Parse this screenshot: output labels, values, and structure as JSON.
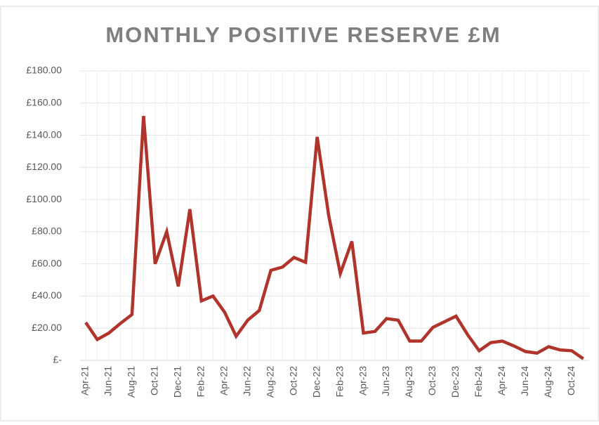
{
  "chart_data": {
    "type": "line",
    "title": "MONTHLY POSITIVE RESERVE £M",
    "categories": [
      "Apr-21",
      null,
      "Jun-21",
      null,
      "Aug-21",
      null,
      "Oct-21",
      null,
      "Dec-21",
      null,
      "Feb-22",
      null,
      "Apr-22",
      null,
      "Jun-22",
      null,
      "Aug-22",
      null,
      "Oct-22",
      null,
      "Dec-22",
      null,
      "Feb-23",
      null,
      "Apr-23",
      null,
      "Jun-23",
      null,
      "Aug-23",
      null,
      "Oct-23",
      null,
      "Dec-23",
      null,
      "Feb-24",
      null,
      "Apr-24",
      null,
      "Jun-24",
      null,
      "Aug-24",
      null,
      "Oct-24",
      null
    ],
    "values": [
      23.6,
      13,
      17,
      23,
      28.5,
      152,
      60,
      80,
      46,
      94,
      37,
      40,
      30,
      15,
      25,
      31,
      56,
      58,
      64,
      61,
      139,
      90,
      54,
      74,
      17,
      18,
      26,
      25,
      12,
      12,
      20.5,
      24,
      27.5,
      16,
      6,
      11,
      12,
      9,
      5.5,
      4.5,
      8.5,
      6.5,
      6,
      1
    ],
    "color": "#b0342c",
    "ylim": [
      0,
      180
    ],
    "yticks": [
      {
        "value": 0,
        "label": "£-"
      },
      {
        "value": 20,
        "label": "£20.00"
      },
      {
        "value": 40,
        "label": "£40.00"
      },
      {
        "value": 60,
        "label": "£60.00"
      },
      {
        "value": 80,
        "label": "£80.00"
      },
      {
        "value": 100,
        "label": "£100.00"
      },
      {
        "value": 120,
        "label": "£120.00"
      },
      {
        "value": 140,
        "label": "£140.00"
      },
      {
        "value": 160,
        "label": "£160.00"
      },
      {
        "value": 180,
        "label": "£180.00"
      }
    ],
    "grid": true
  }
}
